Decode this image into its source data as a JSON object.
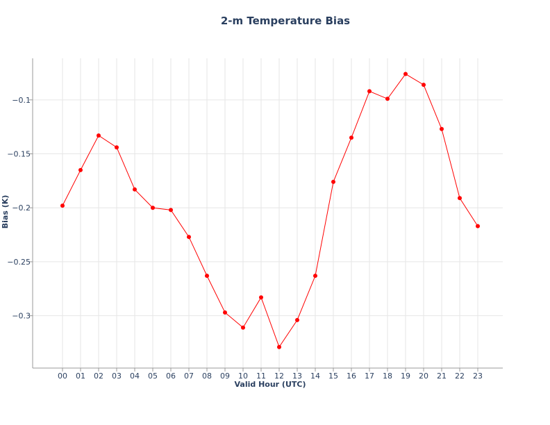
{
  "chart_data": {
    "type": "line",
    "title": "2-m Temperature Bias",
    "xlabel": "Valid Hour (UTC)",
    "ylabel": "Bias (K)",
    "categories": [
      "00",
      "01",
      "02",
      "03",
      "04",
      "05",
      "06",
      "07",
      "08",
      "09",
      "10",
      "11",
      "12",
      "13",
      "14",
      "15",
      "16",
      "17",
      "18",
      "19",
      "20",
      "21",
      "22",
      "23"
    ],
    "series": [
      {
        "values": [
          -0.198,
          -0.165,
          -0.133,
          -0.144,
          -0.183,
          -0.2,
          -0.202,
          -0.227,
          -0.263,
          -0.297,
          -0.311,
          -0.283,
          -0.329,
          -0.304,
          -0.263,
          -0.176,
          -0.135,
          -0.092,
          -0.099,
          -0.076,
          -0.086,
          -0.127,
          -0.191,
          -0.217
        ],
        "color": "#ff0000"
      }
    ],
    "yticks": [
      -0.1,
      -0.15,
      -0.2,
      -0.25,
      -0.3
    ],
    "ytick_labels": [
      "−0.1",
      "−0.15",
      "−0.2",
      "−0.25",
      "−0.3"
    ],
    "ylim": [
      -0.3485,
      -0.0615
    ],
    "grid": true,
    "legend": "none"
  }
}
